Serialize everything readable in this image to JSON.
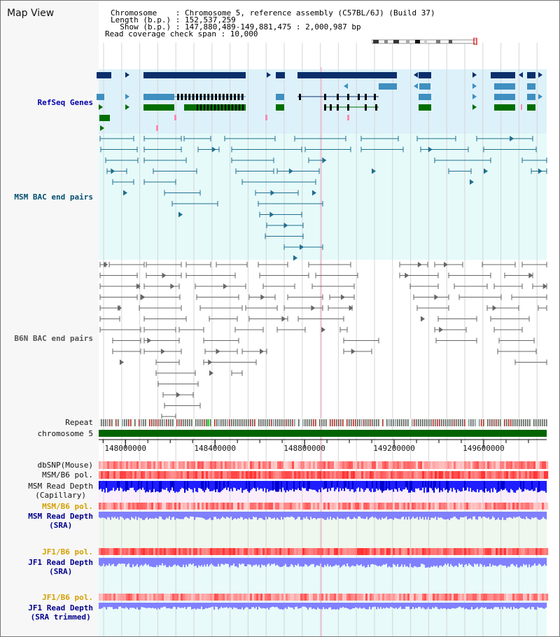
{
  "header": {
    "title": "Map View",
    "info_lines": [
      "Chromosome    : Chromosome 5, reference assembly (C57BL/6J) (Build 37)",
      "Length (b.p.) : 152,537,259",
      "  Show (b.p.) : 147,880,489-149,881,475 : 2,000,987 bp",
      "Read coverage check span : 10,000"
    ]
  },
  "tracks": {
    "refseq": {
      "label": "RefSeq Genes",
      "color": "#0000aa"
    },
    "msm_bac": {
      "label": "MSM BAC end pairs",
      "color": "#004f6f"
    },
    "b6n_bac": {
      "label": "B6N BAC end pairs",
      "color": "#555555"
    },
    "repeat": {
      "label": "Repeat"
    },
    "chromosome": {
      "label": "chromosome 5",
      "color": "#006400"
    },
    "dbsnp": {
      "label": "dbSNP(Mouse)"
    },
    "msm_b6_pol_1": {
      "label": "MSM/B6 pol."
    },
    "msm_depth_cap": {
      "label_1": "MSM Read Depth",
      "label_2": "(Capillary)"
    },
    "msm_b6_pol_2": {
      "label": "MSM/B6 pol.",
      "color": "#d4a000"
    },
    "msm_depth_sra": {
      "label_1": "MSM Read Depth",
      "label_2": "(SRA)",
      "color": "#00008b"
    },
    "jf1_b6_pol_1": {
      "label": "JF1/B6 pol.",
      "color": "#d4a000"
    },
    "jf1_depth_sra": {
      "label_1": "JF1 Read Depth",
      "label_2": "(SRA)",
      "color": "#00008b"
    },
    "jf1_b6_pol_2": {
      "label": "JF1/B6 pol.",
      "color": "#d4a000"
    },
    "jf1_depth_trim": {
      "label_1": "JF1 Read Depth",
      "label_2": "(SRA trimmed)",
      "color": "#00008b"
    }
  },
  "axis": {
    "ticks": [
      {
        "value": 148000000,
        "label": "148000000"
      },
      {
        "value": 148400000,
        "label": "148400000"
      },
      {
        "value": 148800000,
        "label": "148800000"
      },
      {
        "value": 149200000,
        "label": "149200000"
      },
      {
        "value": 149600000,
        "label": "149600000"
      }
    ]
  },
  "colors": {
    "refseq_bg": "#ddf1fa",
    "msm_bac_bg": "#e6fafa",
    "gene_dark": "#0a2f6b",
    "gene_mid": "#3f8fc0",
    "gene_green": "#006e00",
    "msm_line": "#1f6f8f",
    "b6n_line": "#666666",
    "depth_blue": "#1e1eff",
    "depth_light": "#8080ff",
    "pol_red": "#ff2a2a",
    "pol_pink": "#ffb0b0"
  }
}
